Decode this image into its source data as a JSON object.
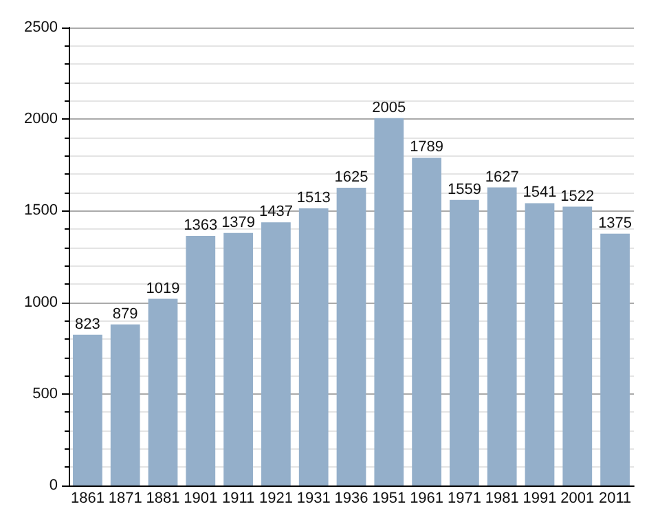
{
  "chart_data": {
    "type": "bar",
    "categories": [
      "1861",
      "1871",
      "1881",
      "1901",
      "1911",
      "1921",
      "1931",
      "1936",
      "1951",
      "1961",
      "1971",
      "1981",
      "1991",
      "2001",
      "2011"
    ],
    "values": [
      823,
      879,
      1019,
      1363,
      1379,
      1437,
      1513,
      1625,
      2005,
      1789,
      1559,
      1627,
      1541,
      1522,
      1375
    ],
    "color": "#94afca",
    "ylim": [
      0,
      2500
    ],
    "yticks": [
      0,
      500,
      1000,
      1500,
      2000,
      2500
    ],
    "grid": true,
    "data_labels": true
  }
}
